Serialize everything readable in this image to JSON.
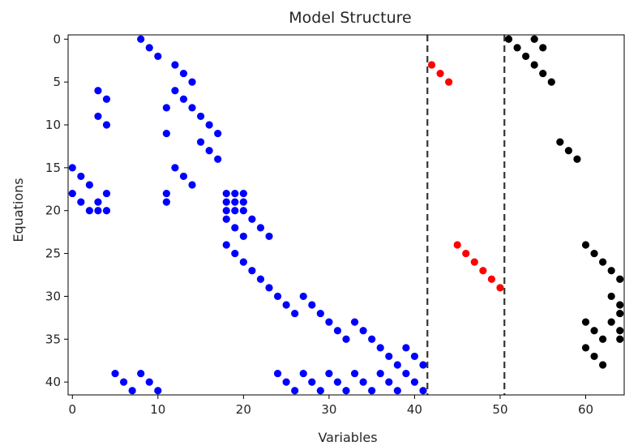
{
  "chart_data": {
    "type": "scatter",
    "title": "Model Structure",
    "xlabel": "Variables",
    "ylabel": "Equations",
    "xlim": [
      -0.5,
      64.5
    ],
    "ylim": [
      41.5,
      -0.5
    ],
    "y_inverted": true,
    "xticks": [
      0,
      10,
      20,
      30,
      40,
      50,
      60
    ],
    "yticks": [
      0,
      5,
      10,
      15,
      20,
      25,
      30,
      35,
      40
    ],
    "grid": false,
    "legend": "none",
    "vlines": [
      {
        "x": 41.5,
        "color": "#333333",
        "style": "dashed"
      },
      {
        "x": 50.5,
        "color": "#333333",
        "style": "dashed"
      }
    ],
    "series": [
      {
        "color": "#0000ff",
        "points": [
          [
            8,
            0
          ],
          [
            9,
            1
          ],
          [
            10,
            2
          ],
          [
            12,
            3
          ],
          [
            13,
            4
          ],
          [
            14,
            5
          ],
          [
            3,
            6
          ],
          [
            12,
            6
          ],
          [
            4,
            7
          ],
          [
            13,
            7
          ],
          [
            11,
            8
          ],
          [
            14,
            8
          ],
          [
            3,
            9
          ],
          [
            15,
            9
          ],
          [
            4,
            10
          ],
          [
            16,
            10
          ],
          [
            11,
            11
          ],
          [
            17,
            11
          ],
          [
            15,
            12
          ],
          [
            16,
            13
          ],
          [
            17,
            14
          ],
          [
            0,
            15
          ],
          [
            12,
            15
          ],
          [
            1,
            16
          ],
          [
            13,
            16
          ],
          [
            2,
            17
          ],
          [
            14,
            17
          ],
          [
            0,
            18
          ],
          [
            4,
            18
          ],
          [
            11,
            18
          ],
          [
            18,
            18
          ],
          [
            19,
            18
          ],
          [
            20,
            18
          ],
          [
            1,
            19
          ],
          [
            3,
            19
          ],
          [
            11,
            19
          ],
          [
            18,
            19
          ],
          [
            19,
            19
          ],
          [
            20,
            19
          ],
          [
            2,
            20
          ],
          [
            3,
            20
          ],
          [
            4,
            20
          ],
          [
            18,
            20
          ],
          [
            19,
            20
          ],
          [
            20,
            20
          ],
          [
            18,
            21
          ],
          [
            21,
            21
          ],
          [
            19,
            22
          ],
          [
            22,
            22
          ],
          [
            20,
            23
          ],
          [
            23,
            23
          ],
          [
            18,
            24
          ],
          [
            19,
            25
          ],
          [
            20,
            26
          ],
          [
            21,
            27
          ],
          [
            22,
            28
          ],
          [
            23,
            29
          ],
          [
            24,
            30
          ],
          [
            27,
            30
          ],
          [
            25,
            31
          ],
          [
            28,
            31
          ],
          [
            26,
            32
          ],
          [
            29,
            32
          ],
          [
            30,
            33
          ],
          [
            33,
            33
          ],
          [
            31,
            34
          ],
          [
            34,
            34
          ],
          [
            32,
            35
          ],
          [
            35,
            35
          ],
          [
            36,
            36
          ],
          [
            39,
            36
          ],
          [
            37,
            37
          ],
          [
            40,
            37
          ],
          [
            38,
            38
          ],
          [
            41,
            38
          ],
          [
            5,
            39
          ],
          [
            8,
            39
          ],
          [
            24,
            39
          ],
          [
            27,
            39
          ],
          [
            30,
            39
          ],
          [
            33,
            39
          ],
          [
            36,
            39
          ],
          [
            39,
            39
          ],
          [
            6,
            40
          ],
          [
            9,
            40
          ],
          [
            25,
            40
          ],
          [
            28,
            40
          ],
          [
            31,
            40
          ],
          [
            34,
            40
          ],
          [
            37,
            40
          ],
          [
            40,
            40
          ],
          [
            7,
            41
          ],
          [
            10,
            41
          ],
          [
            26,
            41
          ],
          [
            29,
            41
          ],
          [
            32,
            41
          ],
          [
            35,
            41
          ],
          [
            38,
            41
          ],
          [
            41,
            41
          ]
        ]
      },
      {
        "color": "#ff0000",
        "points": [
          [
            42,
            3
          ],
          [
            43,
            4
          ],
          [
            44,
            5
          ],
          [
            45,
            24
          ],
          [
            46,
            25
          ],
          [
            47,
            26
          ],
          [
            48,
            27
          ],
          [
            49,
            28
          ],
          [
            50,
            29
          ]
        ]
      },
      {
        "color": "#000000",
        "points": [
          [
            51,
            0
          ],
          [
            54,
            0
          ],
          [
            52,
            1
          ],
          [
            55,
            1
          ],
          [
            53,
            2
          ],
          [
            54,
            3
          ],
          [
            55,
            4
          ],
          [
            56,
            5
          ],
          [
            57,
            12
          ],
          [
            58,
            13
          ],
          [
            59,
            14
          ],
          [
            60,
            24
          ],
          [
            61,
            25
          ],
          [
            62,
            26
          ],
          [
            63,
            27
          ],
          [
            64,
            28
          ],
          [
            63,
            30
          ],
          [
            64,
            31
          ],
          [
            64,
            32
          ],
          [
            60,
            33
          ],
          [
            63,
            33
          ],
          [
            61,
            34
          ],
          [
            64,
            34
          ],
          [
            62,
            35
          ],
          [
            64,
            35
          ],
          [
            60,
            36
          ],
          [
            61,
            37
          ],
          [
            62,
            38
          ]
        ]
      }
    ]
  }
}
